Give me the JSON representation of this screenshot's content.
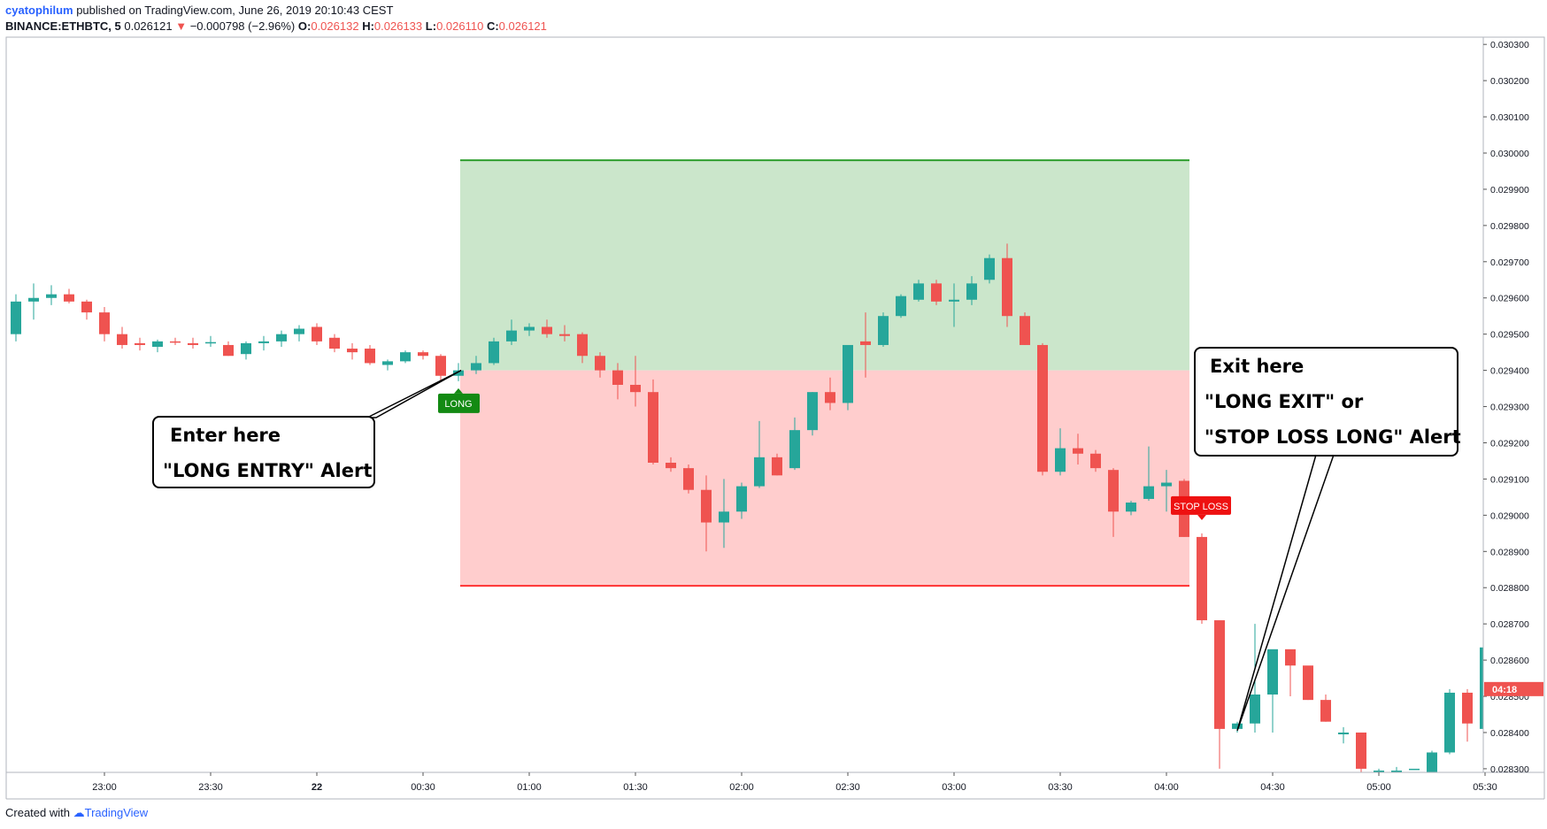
{
  "header": {
    "username": "cyatophilum",
    "published_text": " published on TradingView.com, June 26, 2019 20:10:43 CEST",
    "symbol": "BINANCE:ETHBTC, 5",
    "last_price": "0.026121",
    "change": "−0.000798 (−2.96%)",
    "open_label": "O:",
    "open": "0.026132",
    "high_label": "H:",
    "high": "0.026133",
    "low_label": "L:",
    "low": "0.026110",
    "close_label": "C:",
    "close": "0.026121"
  },
  "footer": {
    "created_with": "Created with",
    "brand": "TradingView"
  },
  "callouts": {
    "entry": {
      "line1": "Enter here",
      "line2": "\"LONG ENTRY\" Alert"
    },
    "exit": {
      "line1": "Exit here",
      "line2": "\"LONG EXIT\" or",
      "line3": "\"STOP LOSS LONG\" Alert"
    }
  },
  "colors": {
    "up": "#26a69a",
    "down": "#ef5350",
    "profit_zone": "#cbe6cb",
    "loss_zone": "#ffcdcd",
    "take_profit_line": "#2e9e2e",
    "stop_line": "#ff3030",
    "long_label": "#138a13",
    "stop_label": "#ee1111"
  },
  "chart_data": {
    "type": "candlestick",
    "symbol": "BINANCE:ETHBTC",
    "timeframe": "5",
    "x_tick_labels": [
      "23:00",
      "23:30",
      "22",
      "00:30",
      "01:00",
      "01:30",
      "02:00",
      "02:30",
      "03:00",
      "03:30",
      "04:00",
      "04:30",
      "05:00",
      "05:30"
    ],
    "y_tick_labels": [
      "0.030300",
      "0.030200",
      "0.030100",
      "0.030000",
      "0.029900",
      "0.029800",
      "0.029700",
      "0.029600",
      "0.029500",
      "0.029400",
      "0.029300",
      "0.029200",
      "0.029100",
      "0.029000",
      "0.028900",
      "0.028800",
      "0.028700",
      "0.028600",
      "0.028500",
      "0.028400",
      "0.028300"
    ],
    "ylim": [
      0.02829,
      0.03032
    ],
    "bar_time_start": "22:35",
    "bar_interval_minutes": 5,
    "price_label": "04:18",
    "candles": [
      {
        "o": 0.0295,
        "h": 0.02961,
        "l": 0.02948,
        "c": 0.02959
      },
      {
        "o": 0.02959,
        "h": 0.02964,
        "l": 0.02954,
        "c": 0.0296
      },
      {
        "o": 0.0296,
        "h": 0.029635,
        "l": 0.02958,
        "c": 0.02961
      },
      {
        "o": 0.02961,
        "h": 0.029625,
        "l": 0.029585,
        "c": 0.02959
      },
      {
        "o": 0.02959,
        "h": 0.029595,
        "l": 0.02954,
        "c": 0.02956
      },
      {
        "o": 0.02956,
        "h": 0.029575,
        "l": 0.02948,
        "c": 0.0295
      },
      {
        "o": 0.0295,
        "h": 0.02952,
        "l": 0.02946,
        "c": 0.02947
      },
      {
        "o": 0.029475,
        "h": 0.02949,
        "l": 0.029455,
        "c": 0.02947
      },
      {
        "o": 0.029465,
        "h": 0.029485,
        "l": 0.02945,
        "c": 0.02948
      },
      {
        "o": 0.02948,
        "h": 0.02949,
        "l": 0.02947,
        "c": 0.029478
      },
      {
        "o": 0.029475,
        "h": 0.02949,
        "l": 0.02946,
        "c": 0.02947
      },
      {
        "o": 0.029475,
        "h": 0.029495,
        "l": 0.029465,
        "c": 0.029478
      },
      {
        "o": 0.02947,
        "h": 0.02948,
        "l": 0.02944,
        "c": 0.02944
      },
      {
        "o": 0.029445,
        "h": 0.02948,
        "l": 0.02943,
        "c": 0.029475
      },
      {
        "o": 0.029475,
        "h": 0.029495,
        "l": 0.029455,
        "c": 0.02948
      },
      {
        "o": 0.02948,
        "h": 0.02951,
        "l": 0.029465,
        "c": 0.0295
      },
      {
        "o": 0.0295,
        "h": 0.029525,
        "l": 0.02948,
        "c": 0.029515
      },
      {
        "o": 0.02952,
        "h": 0.02953,
        "l": 0.02947,
        "c": 0.02948
      },
      {
        "o": 0.02949,
        "h": 0.0295,
        "l": 0.02945,
        "c": 0.02946
      },
      {
        "o": 0.02946,
        "h": 0.029475,
        "l": 0.02943,
        "c": 0.02945
      },
      {
        "o": 0.02946,
        "h": 0.02947,
        "l": 0.029415,
        "c": 0.02942
      },
      {
        "o": 0.029415,
        "h": 0.02943,
        "l": 0.0294,
        "c": 0.029425
      },
      {
        "o": 0.029425,
        "h": 0.029455,
        "l": 0.02942,
        "c": 0.02945
      },
      {
        "o": 0.02945,
        "h": 0.029455,
        "l": 0.02943,
        "c": 0.02944
      },
      {
        "o": 0.02944,
        "h": 0.029445,
        "l": 0.02937,
        "c": 0.029385
      },
      {
        "o": 0.029385,
        "h": 0.02942,
        "l": 0.02937,
        "c": 0.0294
      },
      {
        "o": 0.0294,
        "h": 0.02944,
        "l": 0.02939,
        "c": 0.02942
      },
      {
        "o": 0.02942,
        "h": 0.02949,
        "l": 0.029415,
        "c": 0.02948
      },
      {
        "o": 0.02948,
        "h": 0.02954,
        "l": 0.02947,
        "c": 0.02951
      },
      {
        "o": 0.02951,
        "h": 0.02953,
        "l": 0.029495,
        "c": 0.02952
      },
      {
        "o": 0.02952,
        "h": 0.02954,
        "l": 0.02949,
        "c": 0.0295
      },
      {
        "o": 0.0295,
        "h": 0.029525,
        "l": 0.02948,
        "c": 0.029495
      },
      {
        "o": 0.0295,
        "h": 0.029505,
        "l": 0.02942,
        "c": 0.02944
      },
      {
        "o": 0.02944,
        "h": 0.02945,
        "l": 0.02938,
        "c": 0.0294
      },
      {
        "o": 0.0294,
        "h": 0.02942,
        "l": 0.02932,
        "c": 0.02936
      },
      {
        "o": 0.02936,
        "h": 0.02944,
        "l": 0.0293,
        "c": 0.02934
      },
      {
        "o": 0.02934,
        "h": 0.029375,
        "l": 0.02914,
        "c": 0.029145
      },
      {
        "o": 0.029145,
        "h": 0.02916,
        "l": 0.02912,
        "c": 0.02913
      },
      {
        "o": 0.02913,
        "h": 0.02914,
        "l": 0.02906,
        "c": 0.02907
      },
      {
        "o": 0.02907,
        "h": 0.02911,
        "l": 0.0289,
        "c": 0.02898
      },
      {
        "o": 0.02898,
        "h": 0.0291,
        "l": 0.02891,
        "c": 0.02901
      },
      {
        "o": 0.02901,
        "h": 0.02909,
        "l": 0.02899,
        "c": 0.02908
      },
      {
        "o": 0.02908,
        "h": 0.02926,
        "l": 0.029075,
        "c": 0.02916
      },
      {
        "o": 0.02916,
        "h": 0.02917,
        "l": 0.02911,
        "c": 0.02911
      },
      {
        "o": 0.02913,
        "h": 0.02927,
        "l": 0.029125,
        "c": 0.029235
      },
      {
        "o": 0.029235,
        "h": 0.02934,
        "l": 0.02922,
        "c": 0.02934
      },
      {
        "o": 0.02934,
        "h": 0.02938,
        "l": 0.02929,
        "c": 0.02931
      },
      {
        "o": 0.02931,
        "h": 0.02947,
        "l": 0.02929,
        "c": 0.02947
      },
      {
        "o": 0.02948,
        "h": 0.02956,
        "l": 0.02938,
        "c": 0.02947
      },
      {
        "o": 0.02947,
        "h": 0.02956,
        "l": 0.029465,
        "c": 0.02955
      },
      {
        "o": 0.02955,
        "h": 0.02961,
        "l": 0.029545,
        "c": 0.029605
      },
      {
        "o": 0.029595,
        "h": 0.02965,
        "l": 0.02959,
        "c": 0.02964
      },
      {
        "o": 0.02964,
        "h": 0.02965,
        "l": 0.02958,
        "c": 0.02959
      },
      {
        "o": 0.02959,
        "h": 0.02964,
        "l": 0.02952,
        "c": 0.029595
      },
      {
        "o": 0.029595,
        "h": 0.02966,
        "l": 0.02958,
        "c": 0.02964
      },
      {
        "o": 0.02965,
        "h": 0.02972,
        "l": 0.02964,
        "c": 0.02971
      },
      {
        "o": 0.02971,
        "h": 0.02975,
        "l": 0.02952,
        "c": 0.02955
      },
      {
        "o": 0.02955,
        "h": 0.02956,
        "l": 0.02947,
        "c": 0.02947
      },
      {
        "o": 0.02947,
        "h": 0.029475,
        "l": 0.02911,
        "c": 0.02912
      },
      {
        "o": 0.02912,
        "h": 0.02924,
        "l": 0.02911,
        "c": 0.029185
      },
      {
        "o": 0.029185,
        "h": 0.029225,
        "l": 0.02914,
        "c": 0.02917
      },
      {
        "o": 0.02917,
        "h": 0.02918,
        "l": 0.02912,
        "c": 0.02913
      },
      {
        "o": 0.029125,
        "h": 0.02913,
        "l": 0.02894,
        "c": 0.02901
      },
      {
        "o": 0.02901,
        "h": 0.02904,
        "l": 0.029,
        "c": 0.029035
      },
      {
        "o": 0.029045,
        "h": 0.02919,
        "l": 0.02904,
        "c": 0.02908
      },
      {
        "o": 0.02908,
        "h": 0.029125,
        "l": 0.02901,
        "c": 0.02909
      },
      {
        "o": 0.029095,
        "h": 0.0291,
        "l": 0.02894,
        "c": 0.02894
      },
      {
        "o": 0.02894,
        "h": 0.02895,
        "l": 0.0287,
        "c": 0.02871
      },
      {
        "o": 0.02871,
        "h": 0.028705,
        "l": 0.0283,
        "c": 0.02841
      },
      {
        "o": 0.02841,
        "h": 0.02843,
        "l": 0.0284,
        "c": 0.028425
      },
      {
        "o": 0.028425,
        "h": 0.0287,
        "l": 0.0284,
        "c": 0.028505
      },
      {
        "o": 0.028505,
        "h": 0.028625,
        "l": 0.0284,
        "c": 0.02863
      },
      {
        "o": 0.02863,
        "h": 0.02862,
        "l": 0.0285,
        "c": 0.028585
      },
      {
        "o": 0.028585,
        "h": 0.02858,
        "l": 0.02849,
        "c": 0.02849
      },
      {
        "o": 0.02849,
        "h": 0.028505,
        "l": 0.02843,
        "c": 0.02843
      },
      {
        "o": 0.028395,
        "h": 0.028415,
        "l": 0.02837,
        "c": 0.0284
      },
      {
        "o": 0.0284,
        "h": 0.02838,
        "l": 0.02828,
        "c": 0.0283
      },
      {
        "o": 0.02829,
        "h": 0.0283,
        "l": 0.028285,
        "c": 0.028295
      },
      {
        "o": 0.02829,
        "h": 0.028305,
        "l": 0.028285,
        "c": 0.028295
      },
      {
        "o": 0.0283,
        "h": 0.0283,
        "l": 0.0283,
        "c": 0.0283
      },
      {
        "o": 0.02829,
        "h": 0.02835,
        "l": 0.02829,
        "c": 0.028345
      },
      {
        "o": 0.028345,
        "h": 0.02852,
        "l": 0.02834,
        "c": 0.02851
      },
      {
        "o": 0.02851,
        "h": 0.02852,
        "l": 0.028375,
        "c": 0.028425
      },
      {
        "o": 0.02841,
        "h": 0.02866,
        "l": 0.0284,
        "c": 0.028635
      },
      {
        "o": 0.02863,
        "h": 0.02865,
        "l": 0.02852,
        "c": 0.02852
      }
    ],
    "position": {
      "side": "long",
      "entry_label": "LONG",
      "stop_label": "STOP LOSS",
      "entry_bar": 25,
      "exit_bar": 66,
      "entry_price": 0.0294,
      "take_profit": 0.02998,
      "stop_loss": 0.028805
    }
  }
}
